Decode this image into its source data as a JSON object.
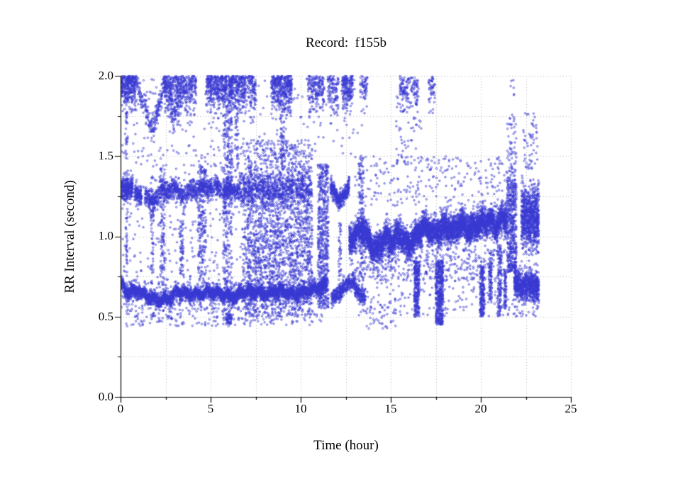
{
  "title": "Record:  f155b",
  "chart_data": {
    "type": "scatter",
    "title": "Record:  f155b",
    "xlabel": "Time (hour)",
    "ylabel": "RR Interval (second)",
    "xlim": [
      0,
      25
    ],
    "ylim": [
      0.0,
      2.0
    ],
    "xticks_major": [
      0,
      5,
      10,
      15,
      20,
      25
    ],
    "xtick_labels": [
      "0",
      "5",
      "10",
      "15",
      "20",
      "25"
    ],
    "yticks_major": [
      0.0,
      0.5,
      1.0,
      1.5,
      2.0
    ],
    "ytick_labels": [
      "0.0",
      "0.5",
      "1.0",
      "1.5",
      "2.0"
    ],
    "minor_x_step": 2.5,
    "minor_y_step": 0.25,
    "data_end_hour": 23.2,
    "grid": {
      "show": true,
      "style": "dotted",
      "color": "#b4b4b4",
      "x_interval": 2.5,
      "y_interval": 0.25
    },
    "marker": {
      "shape": "open-circle",
      "color": "#3838d2",
      "radius_px": 1.2
    },
    "axis_color": "#000000",
    "point_cloud": {
      "seed": 1234567,
      "segments": [
        {
          "k": "b",
          "t": [
            0.05,
            11.45
          ],
          "p": [
            [
              0.05,
              0.7
            ],
            [
              0.4,
              0.65
            ],
            [
              1.0,
              0.66
            ],
            [
              1.6,
              0.62
            ],
            [
              2.2,
              0.6
            ],
            [
              2.8,
              0.62
            ],
            [
              3.2,
              0.66
            ],
            [
              3.8,
              0.64
            ],
            [
              4.4,
              0.64
            ],
            [
              5.0,
              0.66
            ],
            [
              5.6,
              0.64
            ],
            [
              6.2,
              0.62
            ],
            [
              6.8,
              0.65
            ],
            [
              7.4,
              0.66
            ],
            [
              8.0,
              0.64
            ],
            [
              8.6,
              0.66
            ],
            [
              9.2,
              0.65
            ],
            [
              9.8,
              0.64
            ],
            [
              10.4,
              0.66
            ],
            [
              11.0,
              0.68
            ],
            [
              11.45,
              0.7
            ]
          ],
          "s": 0.02,
          "w": [
            0.012,
            1.7,
            0.5
          ],
          "n": 4000
        },
        {
          "k": "b",
          "t": [
            0.05,
            11.45
          ],
          "p": [
            [
              0.05,
              0.68
            ],
            [
              2.2,
              0.61
            ],
            [
              4.4,
              0.64
            ],
            [
              6.8,
              0.64
            ],
            [
              9.2,
              0.65
            ],
            [
              11.45,
              0.69
            ]
          ],
          "s": 0.06,
          "n": 700
        },
        {
          "k": "b",
          "t": [
            0.05,
            0.68
          ],
          "c": 1.3,
          "s": 0.035,
          "n": 280
        },
        {
          "k": "b",
          "t": [
            0.78,
            1.18
          ],
          "c": 1.26,
          "s": 0.03,
          "n": 130
        },
        {
          "k": "b",
          "t": [
            1.35,
            6.6
          ],
          "p": [
            [
              1.35,
              1.24
            ],
            [
              1.8,
              1.22
            ],
            [
              2.3,
              1.28
            ],
            [
              2.9,
              1.3
            ],
            [
              3.5,
              1.26
            ],
            [
              4.1,
              1.29
            ],
            [
              4.7,
              1.31
            ],
            [
              5.3,
              1.3
            ],
            [
              5.9,
              1.29
            ],
            [
              6.6,
              1.28
            ]
          ],
          "s": 0.03,
          "w": [
            0.012,
            1.3,
            2.0
          ],
          "n": 1250
        },
        {
          "k": "b",
          "t": [
            6.6,
            10.6
          ],
          "p": [
            [
              6.6,
              1.28
            ],
            [
              7.5,
              1.3
            ],
            [
              8.5,
              1.27
            ],
            [
              9.5,
              1.3
            ],
            [
              10.6,
              1.28
            ]
          ],
          "s": 0.05,
          "n": 800
        },
        {
          "k": "b",
          "t": [
            11.65,
            12.7
          ],
          "p": [
            [
              11.65,
              1.33
            ],
            [
              11.9,
              1.26
            ],
            [
              12.15,
              1.22
            ],
            [
              12.45,
              1.26
            ],
            [
              12.7,
              1.32
            ]
          ],
          "s": 0.028,
          "n": 360
        },
        {
          "k": "b",
          "t": [
            11.7,
            13.6
          ],
          "p": [
            [
              11.7,
              0.62
            ],
            [
              12.1,
              0.64
            ],
            [
              12.5,
              0.7
            ],
            [
              12.9,
              0.72
            ],
            [
              13.2,
              0.64
            ],
            [
              13.6,
              0.62
            ]
          ],
          "s": 0.025,
          "n": 550
        },
        {
          "k": "b",
          "t": [
            12.7,
            21.45
          ],
          "p": [
            [
              12.7,
              0.95
            ],
            [
              13.1,
              1.02
            ],
            [
              13.5,
              1.04
            ],
            [
              13.9,
              0.94
            ],
            [
              14.3,
              0.92
            ],
            [
              14.7,
              1.0
            ],
            [
              15.1,
              0.97
            ],
            [
              15.5,
              1.02
            ],
            [
              15.9,
              0.94
            ],
            [
              16.4,
              1.0
            ],
            [
              16.9,
              1.06
            ],
            [
              17.4,
              1.02
            ],
            [
              17.9,
              1.06
            ],
            [
              18.4,
              1.03
            ],
            [
              18.9,
              1.08
            ],
            [
              19.4,
              1.04
            ],
            [
              19.9,
              1.08
            ],
            [
              20.4,
              1.1
            ],
            [
              20.9,
              1.06
            ],
            [
              21.2,
              1.12
            ],
            [
              21.45,
              1.1
            ]
          ],
          "s": 0.045,
          "w": [
            0.015,
            1.9,
            1.0
          ],
          "n": 5600
        },
        {
          "k": "u",
          "t": [
            13.0,
            21.45
          ],
          "y": [
            0.72,
            0.92
          ],
          "n": 420
        },
        {
          "k": "u",
          "t": [
            13.0,
            21.45
          ],
          "y": [
            1.18,
            1.5
          ],
          "n": 260
        },
        {
          "k": "u",
          "t": [
            21.45,
            21.98
          ],
          "y": [
            0.78,
            1.35
          ],
          "n": 480
        },
        {
          "k": "u",
          "t": [
            21.45,
            21.98
          ],
          "y": [
            1.35,
            1.76
          ],
          "n": 70
        },
        {
          "k": "b",
          "t": [
            22.25,
            23.22
          ],
          "c": 1.12,
          "s": 0.1,
          "n": 850
        },
        {
          "k": "u",
          "t": [
            22.35,
            23.15
          ],
          "y": [
            1.42,
            1.78
          ],
          "n": 55
        },
        {
          "k": "b",
          "t": [
            21.85,
            23.22
          ],
          "p": [
            [
              21.85,
              0.72
            ],
            [
              22.3,
              0.68
            ],
            [
              22.8,
              0.7
            ],
            [
              23.22,
              0.68
            ]
          ],
          "s": 0.045,
          "n": 800
        },
        {
          "k": "u",
          "t": [
            21.65,
            21.85
          ],
          "y": [
            1.88,
            1.98
          ],
          "n": 6
        },
        {
          "k": "b",
          "t": [
            0.05,
            0.85
          ],
          "c": 1.94,
          "s": 0.075,
          "n": 300
        },
        {
          "k": "b",
          "t": [
            0.85,
            1.75
          ],
          "p": [
            [
              0.85,
              1.97
            ],
            [
              1.75,
              1.66
            ]
          ],
          "s": 0.04,
          "n": 110
        },
        {
          "k": "b",
          "t": [
            1.75,
            2.45
          ],
          "p": [
            [
              1.75,
              1.66
            ],
            [
              2.45,
              1.95
            ]
          ],
          "s": 0.04,
          "n": 110
        },
        {
          "k": "b",
          "t": [
            2.4,
            3.35
          ],
          "c": 1.94,
          "s": 0.075,
          "n": 200
        },
        {
          "k": "b",
          "t": [
            2.45,
            3.35
          ],
          "p": [
            [
              2.45,
              1.95
            ],
            [
              2.95,
              1.75
            ],
            [
              3.35,
              1.86
            ]
          ],
          "s": 0.05,
          "n": 150
        },
        {
          "k": "b",
          "t": [
            3.35,
            4.2
          ],
          "c": 1.93,
          "s": 0.075,
          "n": 200
        },
        {
          "k": "b",
          "t": [
            4.75,
            5.9
          ],
          "c": 1.94,
          "s": 0.075,
          "n": 340
        },
        {
          "k": "b",
          "t": [
            6.0,
            6.95
          ],
          "c": 1.93,
          "s": 0.08,
          "n": 280
        },
        {
          "k": "b",
          "t": [
            7.0,
            7.5
          ],
          "c": 1.93,
          "s": 0.07,
          "n": 110
        },
        {
          "k": "b",
          "t": [
            8.35,
            9.5
          ],
          "c": 1.93,
          "s": 0.08,
          "n": 400
        },
        {
          "k": "b",
          "t": [
            10.4,
            11.3
          ],
          "c": 1.92,
          "s": 0.08,
          "n": 190
        },
        {
          "k": "b",
          "t": [
            11.5,
            12.1
          ],
          "c": 1.92,
          "s": 0.08,
          "n": 110
        },
        {
          "k": "b",
          "t": [
            12.3,
            12.9
          ],
          "c": 1.93,
          "s": 0.08,
          "n": 190
        },
        {
          "k": "b",
          "t": [
            13.3,
            13.7
          ],
          "c": 1.92,
          "s": 0.07,
          "n": 60
        },
        {
          "k": "b",
          "t": [
            15.5,
            16.5
          ],
          "c": 1.93,
          "s": 0.07,
          "n": 130
        },
        {
          "k": "b",
          "t": [
            17.1,
            17.45
          ],
          "c": 1.92,
          "s": 0.06,
          "n": 50
        },
        {
          "k": "u",
          "t": [
            0.05,
            13.6
          ],
          "y": [
            1.5,
            1.99
          ],
          "n": 200
        },
        {
          "k": "u",
          "t": [
            0.1,
            6.8
          ],
          "y": [
            0.78,
            1.55
          ],
          "n": 260
        },
        {
          "k": "u",
          "t": [
            6.8,
            10.65
          ],
          "y": [
            0.5,
            1.6
          ],
          "n": 1500
        },
        {
          "k": "b",
          "t": [
            7.3,
            10.65
          ],
          "c": 0.95,
          "s": 0.13,
          "n": 450
        },
        {
          "k": "u",
          "t": [
            0.15,
            11.2
          ],
          "y": [
            0.44,
            0.56
          ],
          "n": 210
        },
        {
          "k": "u",
          "t": [
            5.85,
            6.2
          ],
          "y": [
            0.45,
            0.52
          ],
          "n": 45
        },
        {
          "k": "u",
          "t": [
            15.3,
            16.7
          ],
          "y": [
            1.45,
            1.95
          ],
          "n": 70
        },
        {
          "k": "u",
          "t": [
            13.2,
            21.4
          ],
          "y": [
            0.5,
            0.72
          ],
          "n": 130
        },
        {
          "k": "u",
          "t": [
            13.6,
            15.3
          ],
          "y": [
            0.42,
            0.6
          ],
          "n": 45
        },
        {
          "k": "u",
          "t": [
            21.5,
            23.2
          ],
          "y": [
            0.5,
            0.62
          ],
          "n": 40
        },
        {
          "k": "u",
          "t": [
            0.28,
            0.4
          ],
          "y": [
            0.5,
            1.92
          ],
          "n": 90
        },
        {
          "k": "u",
          "t": [
            1.68,
            1.82
          ],
          "y": [
            0.7,
            1.38
          ],
          "n": 55
        },
        {
          "k": "u",
          "t": [
            2.2,
            2.45
          ],
          "y": [
            0.7,
            1.45
          ],
          "n": 120
        },
        {
          "k": "u",
          "t": [
            3.3,
            3.5
          ],
          "y": [
            0.75,
            1.1
          ],
          "n": 60
        },
        {
          "k": "u",
          "t": [
            4.3,
            4.75
          ],
          "y": [
            0.75,
            1.45
          ],
          "n": 200
        },
        {
          "k": "u",
          "t": [
            5.7,
            6.2
          ],
          "y": [
            0.45,
            2.0
          ],
          "n": 420
        },
        {
          "k": "u",
          "t": [
            6.35,
            6.55
          ],
          "y": [
            1.4,
            1.85
          ],
          "n": 50
        },
        {
          "k": "u",
          "t": [
            7.05,
            7.25
          ],
          "y": [
            0.5,
            1.5
          ],
          "n": 80
        },
        {
          "k": "u",
          "t": [
            8.85,
            9.1
          ],
          "y": [
            1.45,
            1.85
          ],
          "n": 60
        },
        {
          "k": "u",
          "t": [
            10.95,
            11.55
          ],
          "y": [
            0.55,
            1.45
          ],
          "n": 560
        },
        {
          "k": "u",
          "t": [
            12.1,
            12.25
          ],
          "y": [
            0.6,
            1.1
          ],
          "n": 60
        },
        {
          "k": "u",
          "t": [
            13.25,
            13.5
          ],
          "y": [
            0.72,
            1.5
          ],
          "n": 130
        },
        {
          "k": "u",
          "t": [
            16.3,
            16.6
          ],
          "y": [
            0.5,
            0.85
          ],
          "n": 260
        },
        {
          "k": "u",
          "t": [
            17.5,
            17.9
          ],
          "y": [
            0.45,
            0.85
          ],
          "n": 430
        },
        {
          "k": "u",
          "t": [
            19.95,
            20.2
          ],
          "y": [
            0.5,
            0.82
          ],
          "n": 190
        },
        {
          "k": "u",
          "t": [
            20.45,
            20.62
          ],
          "y": [
            0.6,
            0.9
          ],
          "n": 90
        },
        {
          "k": "u",
          "t": [
            20.95,
            21.15
          ],
          "y": [
            0.5,
            0.95
          ],
          "n": 130
        },
        {
          "k": "u",
          "t": [
            21.3,
            21.42
          ],
          "y": [
            0.55,
            0.8
          ],
          "n": 60
        }
      ]
    }
  }
}
